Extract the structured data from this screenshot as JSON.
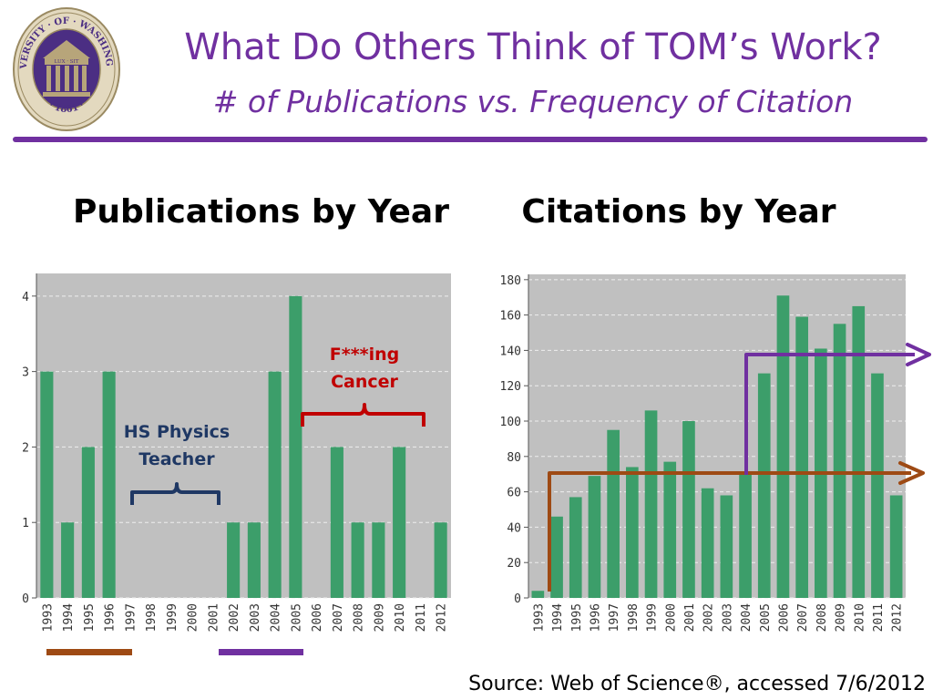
{
  "title": "What Do Others Think of TOM’s Work?",
  "subtitle": "# of Publications vs. Frequency of Citation",
  "seal": {
    "top_text": "UNIVERSITY · OF · WASHINGTON",
    "bottom_text": "· 1861 ·",
    "banner_text": "LUX · SIT"
  },
  "source": "Source:  Web of Science®, accessed 7/6/2012",
  "annotations": {
    "teacher": [
      "HS Physics",
      "Teacher"
    ],
    "cancer": [
      "F***ing",
      "Cancer"
    ]
  },
  "colors": {
    "purple": "#7030a0",
    "bar": "#3c9e6a",
    "plot_bg": "#c0c0c0",
    "brown": "#9e4a14",
    "red": "#c00000",
    "navy": "#1f3864"
  },
  "chart_data": [
    {
      "type": "bar",
      "title": "Publications by Year",
      "categories": [
        "1993",
        "1994",
        "1995",
        "1996",
        "1997",
        "1998",
        "1999",
        "2000",
        "2001",
        "2002",
        "2003",
        "2004",
        "2005",
        "2006",
        "2007",
        "2008",
        "2009",
        "2010",
        "2011",
        "2012"
      ],
      "values": [
        3,
        1,
        2,
        3,
        0,
        0,
        0,
        0,
        0,
        1,
        1,
        3,
        4,
        0,
        2,
        1,
        1,
        2,
        0,
        1
      ],
      "yticks": [
        0,
        1,
        2,
        3,
        4
      ],
      "ylim": [
        0,
        4.3
      ],
      "grid": true
    },
    {
      "type": "bar",
      "title": "Citations by Year",
      "categories": [
        "1993",
        "1994",
        "1995",
        "1996",
        "1997",
        "1998",
        "1999",
        "2000",
        "2001",
        "2002",
        "2003",
        "2004",
        "2005",
        "2006",
        "2007",
        "2008",
        "2009",
        "2010",
        "2011",
        "2012"
      ],
      "values": [
        4,
        46,
        57,
        69,
        95,
        74,
        106,
        77,
        100,
        62,
        58,
        70,
        127,
        171,
        159,
        141,
        155,
        165,
        127,
        58
      ],
      "yticks": [
        0,
        20,
        40,
        60,
        80,
        100,
        120,
        140,
        160,
        180
      ],
      "ylim": [
        0,
        183
      ],
      "grid": true
    }
  ]
}
